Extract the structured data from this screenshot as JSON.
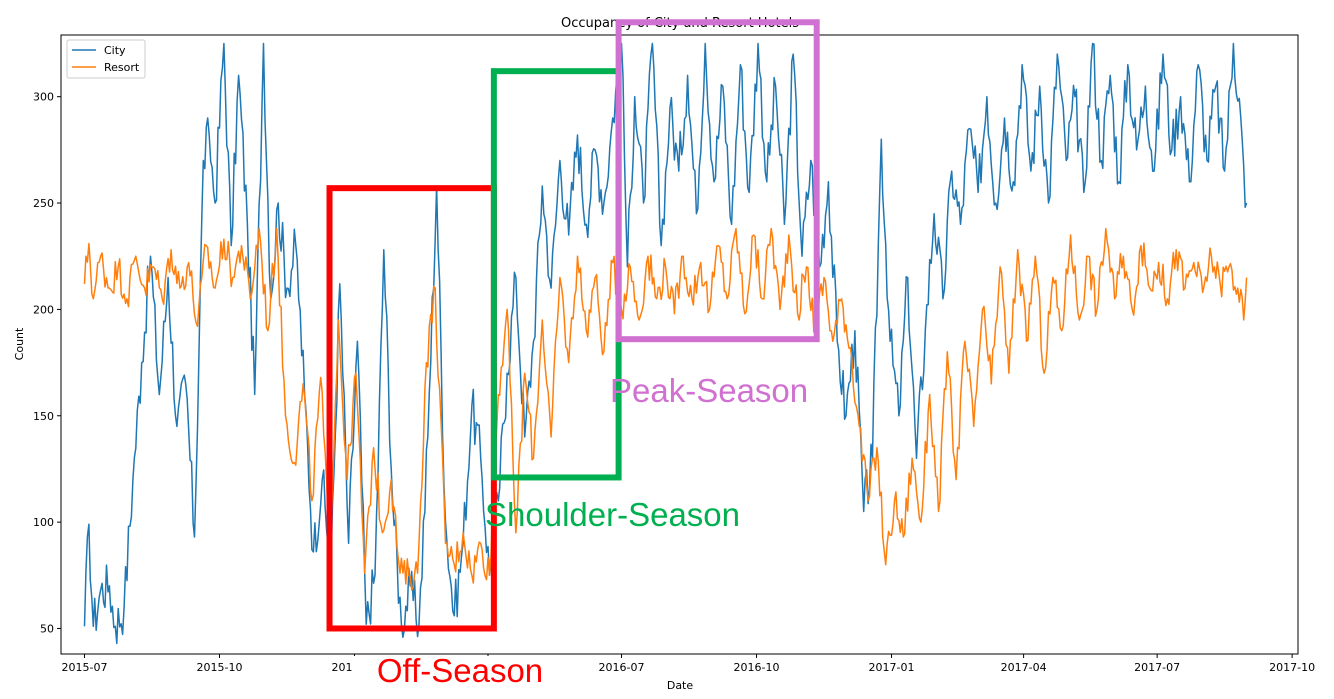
{
  "chart_data": {
    "type": "line",
    "title": "Occupancy of City and Resort Hotels",
    "xlabel": "Date",
    "ylabel": "Count",
    "x_range": [
      "2015-06-15",
      "2017-10-05"
    ],
    "ylim": [
      38,
      329
    ],
    "x_ticks": [
      "2015-07",
      "2015-10",
      "2016-01",
      "2016-04",
      "2016-07",
      "2016-10",
      "2017-01",
      "2017-04",
      "2017-07",
      "2017-10"
    ],
    "x_tick_dates": [
      "2015-07-01",
      "2015-10-01",
      "2016-01-01",
      "2016-04-01",
      "2016-07-01",
      "2016-10-01",
      "2017-01-01",
      "2017-04-01",
      "2017-07-01",
      "2017-10-01"
    ],
    "y_ticks": [
      50,
      100,
      150,
      200,
      250,
      300
    ],
    "grid": false,
    "legend_position": "top-left",
    "series": [
      {
        "name": "City",
        "color": "#1f77b4",
        "points": [
          [
            "2015-07-01",
            51
          ],
          [
            "2015-07-04",
            99
          ],
          [
            "2015-07-07",
            51
          ],
          [
            "2015-07-12",
            68
          ],
          [
            "2015-07-18",
            70
          ],
          [
            "2015-07-22",
            51
          ],
          [
            "2015-07-28",
            60
          ],
          [
            "2015-08-03",
            120
          ],
          [
            "2015-08-09",
            175
          ],
          [
            "2015-08-15",
            225
          ],
          [
            "2015-08-21",
            160
          ],
          [
            "2015-08-27",
            215
          ],
          [
            "2015-09-02",
            145
          ],
          [
            "2015-09-08",
            165
          ],
          [
            "2015-09-14",
            93
          ],
          [
            "2015-09-20",
            270
          ],
          [
            "2015-09-24",
            282
          ],
          [
            "2015-09-28",
            250
          ],
          [
            "2015-10-04",
            325
          ],
          [
            "2015-10-09",
            230
          ],
          [
            "2015-10-14",
            310
          ],
          [
            "2015-10-20",
            240
          ],
          [
            "2015-10-25",
            160
          ],
          [
            "2015-10-31",
            325
          ],
          [
            "2015-11-05",
            205
          ],
          [
            "2015-11-10",
            250
          ],
          [
            "2015-11-16",
            210
          ],
          [
            "2015-11-22",
            230
          ],
          [
            "2015-11-28",
            160
          ],
          [
            "2015-12-04",
            86
          ],
          [
            "2015-12-10",
            120
          ],
          [
            "2015-12-16",
            78
          ],
          [
            "2015-12-22",
            212
          ],
          [
            "2015-12-28",
            90
          ],
          [
            "2016-01-03",
            185
          ],
          [
            "2016-01-09",
            52
          ],
          [
            "2016-01-15",
            75
          ],
          [
            "2016-01-21",
            228
          ],
          [
            "2016-01-27",
            110
          ],
          [
            "2016-02-02",
            52
          ],
          [
            "2016-02-08",
            70
          ],
          [
            "2016-02-14",
            52
          ],
          [
            "2016-02-20",
            140
          ],
          [
            "2016-02-26",
            258
          ],
          [
            "2016-03-03",
            100
          ],
          [
            "2016-03-09",
            56
          ],
          [
            "2016-03-15",
            90
          ],
          [
            "2016-03-21",
            155
          ],
          [
            "2016-03-27",
            130
          ],
          [
            "2016-04-02",
            75
          ],
          [
            "2016-04-08",
            110
          ],
          [
            "2016-04-14",
            170
          ],
          [
            "2016-04-20",
            215
          ],
          [
            "2016-04-26",
            140
          ],
          [
            "2016-05-02",
            185
          ],
          [
            "2016-05-08",
            258
          ],
          [
            "2016-05-14",
            210
          ],
          [
            "2016-05-20",
            270
          ],
          [
            "2016-05-26",
            235
          ],
          [
            "2016-06-01",
            282
          ],
          [
            "2016-06-07",
            240
          ],
          [
            "2016-06-13",
            275
          ],
          [
            "2016-06-19",
            250
          ],
          [
            "2016-06-25",
            290
          ],
          [
            "2016-07-01",
            325
          ],
          [
            "2016-07-05",
            220
          ],
          [
            "2016-07-10",
            300
          ],
          [
            "2016-07-16",
            250
          ],
          [
            "2016-07-22",
            325
          ],
          [
            "2016-07-28",
            230
          ],
          [
            "2016-08-03",
            295
          ],
          [
            "2016-08-09",
            265
          ],
          [
            "2016-08-15",
            310
          ],
          [
            "2016-08-21",
            245
          ],
          [
            "2016-08-27",
            325
          ],
          [
            "2016-09-02",
            260
          ],
          [
            "2016-09-08",
            305
          ],
          [
            "2016-09-14",
            240
          ],
          [
            "2016-09-20",
            315
          ],
          [
            "2016-09-26",
            255
          ],
          [
            "2016-10-02",
            325
          ],
          [
            "2016-10-08",
            260
          ],
          [
            "2016-10-14",
            305
          ],
          [
            "2016-10-20",
            240
          ],
          [
            "2016-10-26",
            320
          ],
          [
            "2016-11-01",
            225
          ],
          [
            "2016-11-07",
            270
          ],
          [
            "2016-11-13",
            220
          ],
          [
            "2016-11-19",
            260
          ],
          [
            "2016-11-25",
            185
          ],
          [
            "2016-12-01",
            150
          ],
          [
            "2016-12-07",
            190
          ],
          [
            "2016-12-13",
            105
          ],
          [
            "2016-12-19",
            130
          ],
          [
            "2016-12-25",
            280
          ],
          [
            "2016-12-31",
            185
          ],
          [
            "2017-01-06",
            150
          ],
          [
            "2017-01-12",
            215
          ],
          [
            "2017-01-18",
            130
          ],
          [
            "2017-01-24",
            190
          ],
          [
            "2017-01-30",
            245
          ],
          [
            "2017-02-05",
            205
          ],
          [
            "2017-02-11",
            265
          ],
          [
            "2017-02-17",
            240
          ],
          [
            "2017-02-23",
            285
          ],
          [
            "2017-03-01",
            255
          ],
          [
            "2017-03-07",
            300
          ],
          [
            "2017-03-13",
            250
          ],
          [
            "2017-03-19",
            290
          ],
          [
            "2017-03-25",
            260
          ],
          [
            "2017-03-31",
            315
          ],
          [
            "2017-04-06",
            265
          ],
          [
            "2017-04-12",
            305
          ],
          [
            "2017-04-18",
            250
          ],
          [
            "2017-04-24",
            320
          ],
          [
            "2017-04-30",
            270
          ],
          [
            "2017-05-06",
            300
          ],
          [
            "2017-05-12",
            255
          ],
          [
            "2017-05-18",
            325
          ],
          [
            "2017-05-24",
            270
          ],
          [
            "2017-05-30",
            310
          ],
          [
            "2017-06-05",
            260
          ],
          [
            "2017-06-11",
            315
          ],
          [
            "2017-06-17",
            275
          ],
          [
            "2017-06-23",
            305
          ],
          [
            "2017-06-29",
            265
          ],
          [
            "2017-07-05",
            320
          ],
          [
            "2017-07-11",
            275
          ],
          [
            "2017-07-17",
            300
          ],
          [
            "2017-07-23",
            260
          ],
          [
            "2017-07-29",
            315
          ],
          [
            "2017-08-04",
            270
          ],
          [
            "2017-08-10",
            305
          ],
          [
            "2017-08-16",
            265
          ],
          [
            "2017-08-22",
            325
          ],
          [
            "2017-08-27",
            290
          ],
          [
            "2017-08-30",
            248
          ],
          [
            "2017-08-31",
            250
          ]
        ]
      },
      {
        "name": "Resort",
        "color": "#ff7f0e",
        "points": [
          [
            "2015-07-01",
            212
          ],
          [
            "2015-07-04",
            231
          ],
          [
            "2015-07-07",
            205
          ],
          [
            "2015-07-12",
            225
          ],
          [
            "2015-07-18",
            210
          ],
          [
            "2015-07-24",
            220
          ],
          [
            "2015-07-30",
            205
          ],
          [
            "2015-08-05",
            225
          ],
          [
            "2015-08-11",
            210
          ],
          [
            "2015-08-17",
            220
          ],
          [
            "2015-08-23",
            205
          ],
          [
            "2015-08-29",
            228
          ],
          [
            "2015-09-04",
            210
          ],
          [
            "2015-09-10",
            222
          ],
          [
            "2015-09-16",
            192
          ],
          [
            "2015-09-22",
            230
          ],
          [
            "2015-09-28",
            210
          ],
          [
            "2015-10-04",
            233
          ],
          [
            "2015-10-10",
            215
          ],
          [
            "2015-10-16",
            230
          ],
          [
            "2015-10-22",
            205
          ],
          [
            "2015-10-28",
            238
          ],
          [
            "2015-11-03",
            190
          ],
          [
            "2015-11-09",
            238
          ],
          [
            "2015-11-15",
            150
          ],
          [
            "2015-11-21",
            128
          ],
          [
            "2015-11-27",
            165
          ],
          [
            "2015-12-03",
            110
          ],
          [
            "2015-12-09",
            168
          ],
          [
            "2015-12-15",
            85
          ],
          [
            "2015-12-21",
            195
          ],
          [
            "2015-12-27",
            120
          ],
          [
            "2016-01-02",
            170
          ],
          [
            "2016-01-08",
            76
          ],
          [
            "2016-01-14",
            135
          ],
          [
            "2016-01-20",
            95
          ],
          [
            "2016-01-26",
            120
          ],
          [
            "2016-02-01",
            76
          ],
          [
            "2016-02-07",
            75
          ],
          [
            "2016-02-13",
            76
          ],
          [
            "2016-02-19",
            175
          ],
          [
            "2016-02-25",
            210
          ],
          [
            "2016-03-03",
            90
          ],
          [
            "2016-03-09",
            80
          ],
          [
            "2016-03-15",
            95
          ],
          [
            "2016-03-21",
            75
          ],
          [
            "2016-03-27",
            90
          ],
          [
            "2016-04-02",
            75
          ],
          [
            "2016-04-08",
            160
          ],
          [
            "2016-04-14",
            200
          ],
          [
            "2016-04-20",
            95
          ],
          [
            "2016-04-26",
            170
          ],
          [
            "2016-05-02",
            130
          ],
          [
            "2016-05-08",
            195
          ],
          [
            "2016-05-14",
            140
          ],
          [
            "2016-05-20",
            215
          ],
          [
            "2016-05-26",
            175
          ],
          [
            "2016-06-01",
            225
          ],
          [
            "2016-06-07",
            190
          ],
          [
            "2016-06-13",
            215
          ],
          [
            "2016-06-19",
            180
          ],
          [
            "2016-06-25",
            222
          ],
          [
            "2016-07-01",
            200
          ],
          [
            "2016-07-07",
            220
          ],
          [
            "2016-07-13",
            195
          ],
          [
            "2016-07-19",
            225
          ],
          [
            "2016-07-25",
            205
          ],
          [
            "2016-07-31",
            220
          ],
          [
            "2016-08-06",
            198
          ],
          [
            "2016-08-12",
            225
          ],
          [
            "2016-08-18",
            205
          ],
          [
            "2016-08-24",
            222
          ],
          [
            "2016-08-30",
            200
          ],
          [
            "2016-09-05",
            230
          ],
          [
            "2016-09-11",
            205
          ],
          [
            "2016-09-17",
            238
          ],
          [
            "2016-09-23",
            198
          ],
          [
            "2016-09-29",
            235
          ],
          [
            "2016-10-05",
            205
          ],
          [
            "2016-10-11",
            238
          ],
          [
            "2016-10-17",
            200
          ],
          [
            "2016-10-23",
            235
          ],
          [
            "2016-10-29",
            198
          ],
          [
            "2016-11-04",
            220
          ],
          [
            "2016-11-10",
            190
          ],
          [
            "2016-11-16",
            215
          ],
          [
            "2016-11-22",
            185
          ],
          [
            "2016-11-28",
            205
          ],
          [
            "2016-12-04",
            182
          ],
          [
            "2016-12-10",
            145
          ],
          [
            "2016-12-16",
            110
          ],
          [
            "2016-12-22",
            135
          ],
          [
            "2016-12-28",
            80
          ],
          [
            "2017-01-03",
            110
          ],
          [
            "2017-01-09",
            93
          ],
          [
            "2017-01-15",
            130
          ],
          [
            "2017-01-21",
            100
          ],
          [
            "2017-01-27",
            160
          ],
          [
            "2017-02-02",
            105
          ],
          [
            "2017-02-08",
            180
          ],
          [
            "2017-02-14",
            120
          ],
          [
            "2017-02-20",
            185
          ],
          [
            "2017-02-26",
            145
          ],
          [
            "2017-03-04",
            200
          ],
          [
            "2017-03-10",
            165
          ],
          [
            "2017-03-16",
            220
          ],
          [
            "2017-03-22",
            170
          ],
          [
            "2017-03-28",
            228
          ],
          [
            "2017-04-03",
            185
          ],
          [
            "2017-04-09",
            225
          ],
          [
            "2017-04-15",
            170
          ],
          [
            "2017-04-21",
            215
          ],
          [
            "2017-04-27",
            190
          ],
          [
            "2017-05-03",
            235
          ],
          [
            "2017-05-09",
            195
          ],
          [
            "2017-05-15",
            225
          ],
          [
            "2017-05-21",
            200
          ],
          [
            "2017-05-27",
            238
          ],
          [
            "2017-06-02",
            205
          ],
          [
            "2017-06-08",
            225
          ],
          [
            "2017-06-14",
            200
          ],
          [
            "2017-06-20",
            230
          ],
          [
            "2017-06-26",
            210
          ],
          [
            "2017-07-02",
            222
          ],
          [
            "2017-07-08",
            205
          ],
          [
            "2017-07-14",
            228
          ],
          [
            "2017-07-20",
            210
          ],
          [
            "2017-07-26",
            222
          ],
          [
            "2017-08-01",
            208
          ],
          [
            "2017-08-07",
            225
          ],
          [
            "2017-08-13",
            212
          ],
          [
            "2017-08-19",
            220
          ],
          [
            "2017-08-25",
            210
          ],
          [
            "2017-08-29",
            195
          ],
          [
            "2017-08-31",
            215
          ]
        ]
      }
    ],
    "annotations": [
      {
        "label": "Off-Season",
        "color": "#ff0000",
        "x_range": [
          "2015-12-15",
          "2016-04-05"
        ],
        "y_range": [
          50,
          257
        ]
      },
      {
        "label": "Shoulder-Season",
        "color": "#00b050",
        "x_range": [
          "2016-04-05",
          "2016-06-29"
        ],
        "y_range": [
          121,
          312
        ]
      },
      {
        "label": "Peak-Season",
        "color": "#d070d0",
        "x_range": [
          "2016-06-29",
          "2016-11-11"
        ],
        "y_range": [
          186,
          335
        ]
      }
    ]
  }
}
